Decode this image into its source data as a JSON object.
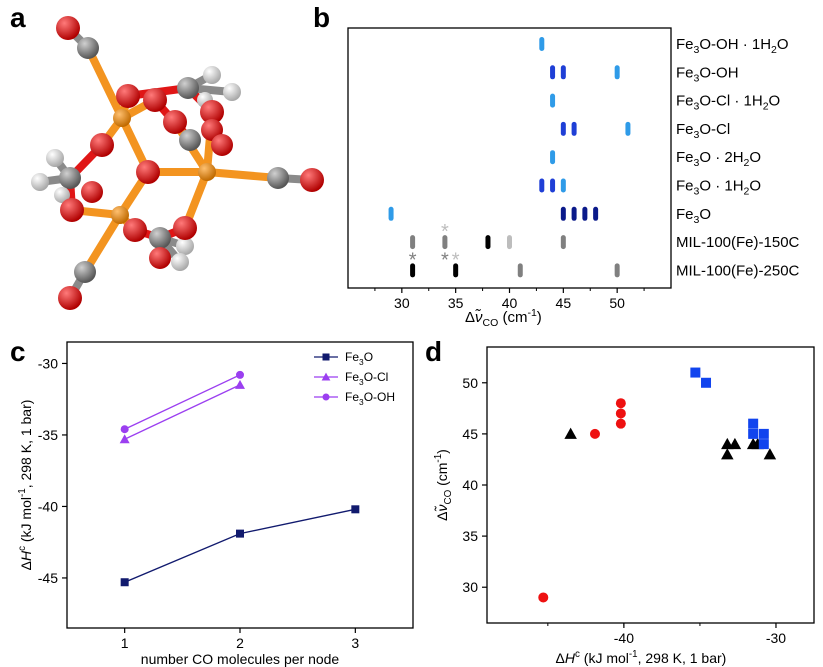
{
  "colors": {
    "light_blue": "#2f9be8",
    "mid_blue": "#1f3fd6",
    "dark_blue": "#0b1a8a",
    "navy": "#111a6e",
    "purple": "#9b3ff0",
    "red": "#ee1111",
    "blue_square": "#1144ee",
    "black": "#000000",
    "gray": "#808080",
    "light_gray": "#bdbdbd",
    "iron": "#f39420",
    "carbon": "#8a8a8a",
    "oxygen": "#e01616",
    "hydrogen": "#ececec"
  },
  "panels": {
    "a": "a",
    "b": "b",
    "c": "c",
    "d": "d"
  },
  "chart_data": [
    {
      "panel": "b",
      "type": "scatter",
      "xlabel_main": "Δ",
      "xlabel_nu": "ν̃",
      "xlabel_sub": "CO",
      "xlabel_unit": "(cm",
      "xlabel_unit_sup": "-1",
      "xlabel_close": ")",
      "xlim": [
        25,
        55
      ],
      "xticks": [
        30,
        35,
        40,
        45,
        50
      ],
      "rows": [
        {
          "label": [
            "Fe",
            "3",
            "O-OH · 1H",
            "2",
            "O"
          ],
          "marks": [
            {
              "x": 43,
              "color": "#2f9be8"
            }
          ]
        },
        {
          "label": [
            "Fe",
            "3",
            "O-OH"
          ],
          "marks": [
            {
              "x": 44,
              "color": "#1f3fd6"
            },
            {
              "x": 45,
              "color": "#1f3fd6"
            },
            {
              "x": 50,
              "color": "#2f9be8"
            }
          ]
        },
        {
          "label": [
            "Fe",
            "3",
            "O-Cl · 1H",
            "2",
            "O"
          ],
          "marks": [
            {
              "x": 44,
              "color": "#2f9be8"
            }
          ]
        },
        {
          "label": [
            "Fe",
            "3",
            "O-Cl"
          ],
          "marks": [
            {
              "x": 45,
              "color": "#1f3fd6"
            },
            {
              "x": 46,
              "color": "#1f3fd6"
            },
            {
              "x": 51,
              "color": "#2f9be8"
            }
          ]
        },
        {
          "label": [
            "Fe",
            "3",
            "O · 2H",
            "2",
            "O"
          ],
          "marks": [
            {
              "x": 44,
              "color": "#2f9be8"
            }
          ]
        },
        {
          "label": [
            "Fe",
            "3",
            "O · 1H",
            "2",
            "O"
          ],
          "marks": [
            {
              "x": 43,
              "color": "#1f3fd6"
            },
            {
              "x": 44,
              "color": "#1f3fd6"
            },
            {
              "x": 45,
              "color": "#2f9be8"
            }
          ]
        },
        {
          "label": [
            "Fe",
            "3",
            "O"
          ],
          "marks": [
            {
              "x": 29,
              "color": "#2f9be8"
            },
            {
              "x": 45,
              "color": "#0b1a8a"
            },
            {
              "x": 46,
              "color": "#0b1a8a"
            },
            {
              "x": 47,
              "color": "#0b1a8a"
            },
            {
              "x": 48,
              "color": "#0b1a8a"
            }
          ]
        },
        {
          "label": [
            "MIL-100(Fe)-150C"
          ],
          "marks": [
            {
              "x": 31,
              "color": "#808080"
            },
            {
              "x": 34,
              "color": "#808080"
            },
            {
              "x": 38,
              "color": "#000000"
            },
            {
              "x": 40,
              "color": "#bdbdbd"
            },
            {
              "x": 45,
              "color": "#808080"
            }
          ]
        },
        {
          "label": [
            "MIL-100(Fe)-250C"
          ],
          "marks": [
            {
              "x": 31,
              "color": "#000000"
            },
            {
              "x": 35,
              "color": "#000000"
            },
            {
              "x": 41,
              "color": "#808080"
            },
            {
              "x": 50,
              "color": "#808080"
            }
          ]
        }
      ],
      "asterisks": [
        {
          "x": 34,
          "row": 7,
          "color": "#bdbdbd",
          "text": "*"
        },
        {
          "x": 31,
          "row": 8,
          "color": "#808080",
          "text": "*"
        },
        {
          "x": 34,
          "row": 8,
          "color": "#808080",
          "text": "*"
        },
        {
          "x": 35,
          "row": 8,
          "color": "#bdbdbd",
          "text": "*"
        }
      ]
    },
    {
      "panel": "c",
      "type": "line",
      "xlabel": "number CO molecules per node",
      "ylabel_parts": [
        "Δ",
        "H",
        "c",
        " (kJ mol",
        "-1",
        ", 298 K, 1 bar)"
      ],
      "xlim": [
        0.5,
        3.5
      ],
      "ylim": [
        -48.5,
        -28.5
      ],
      "xticks": [
        1,
        2,
        3
      ],
      "yticks": [
        -45,
        -40,
        -35,
        -30
      ],
      "series": [
        {
          "name": [
            "Fe",
            "3",
            "O"
          ],
          "marker": "square",
          "color": "#111a6e",
          "x": [
            1,
            2,
            3
          ],
          "y": [
            -45.3,
            -41.9,
            -40.2
          ]
        },
        {
          "name": [
            "Fe",
            "3",
            "O-Cl"
          ],
          "marker": "triangle",
          "color": "#9b3ff0",
          "x": [
            1,
            2
          ],
          "y": [
            -35.3,
            -31.5
          ]
        },
        {
          "name": [
            "Fe",
            "3",
            "O-OH"
          ],
          "marker": "circle",
          "color": "#9b3ff0",
          "x": [
            1,
            2
          ],
          "y": [
            -34.6,
            -30.8
          ]
        }
      ]
    },
    {
      "panel": "d",
      "type": "scatter",
      "xlabel_parts": [
        "Δ",
        "H",
        "c",
        " (kJ mol",
        "-1",
        ", 298 K, 1 bar)"
      ],
      "ylabel_parts": [
        "Δ",
        "ν̃",
        "CO",
        " (cm",
        "-1",
        ")"
      ],
      "xlim": [
        -49,
        -27.5
      ],
      "ylim": [
        26.5,
        53.5
      ],
      "xticks": [
        -40,
        -30
      ],
      "yticks": [
        30,
        35,
        40,
        45,
        50
      ],
      "series": [
        {
          "marker": "circle",
          "color": "#ee1111",
          "points": [
            [
              -45.3,
              29
            ],
            [
              -41.9,
              45
            ],
            [
              -40.2,
              46
            ],
            [
              -40.2,
              47
            ],
            [
              -40.2,
              48
            ]
          ]
        },
        {
          "marker": "triangle",
          "color": "#000000",
          "points": [
            [
              -43.5,
              45
            ],
            [
              -33.2,
              43
            ],
            [
              -33.2,
              44
            ],
            [
              -32.7,
              44
            ],
            [
              -31.5,
              44
            ],
            [
              -31.2,
              44
            ],
            [
              -30.4,
              43
            ]
          ]
        },
        {
          "marker": "square",
          "color": "#1144ee",
          "points": [
            [
              -35.3,
              51
            ],
            [
              -34.6,
              50
            ],
            [
              -31.5,
              46
            ],
            [
              -31.5,
              45
            ],
            [
              -30.8,
              45
            ],
            [
              -30.8,
              44
            ]
          ]
        }
      ]
    }
  ]
}
